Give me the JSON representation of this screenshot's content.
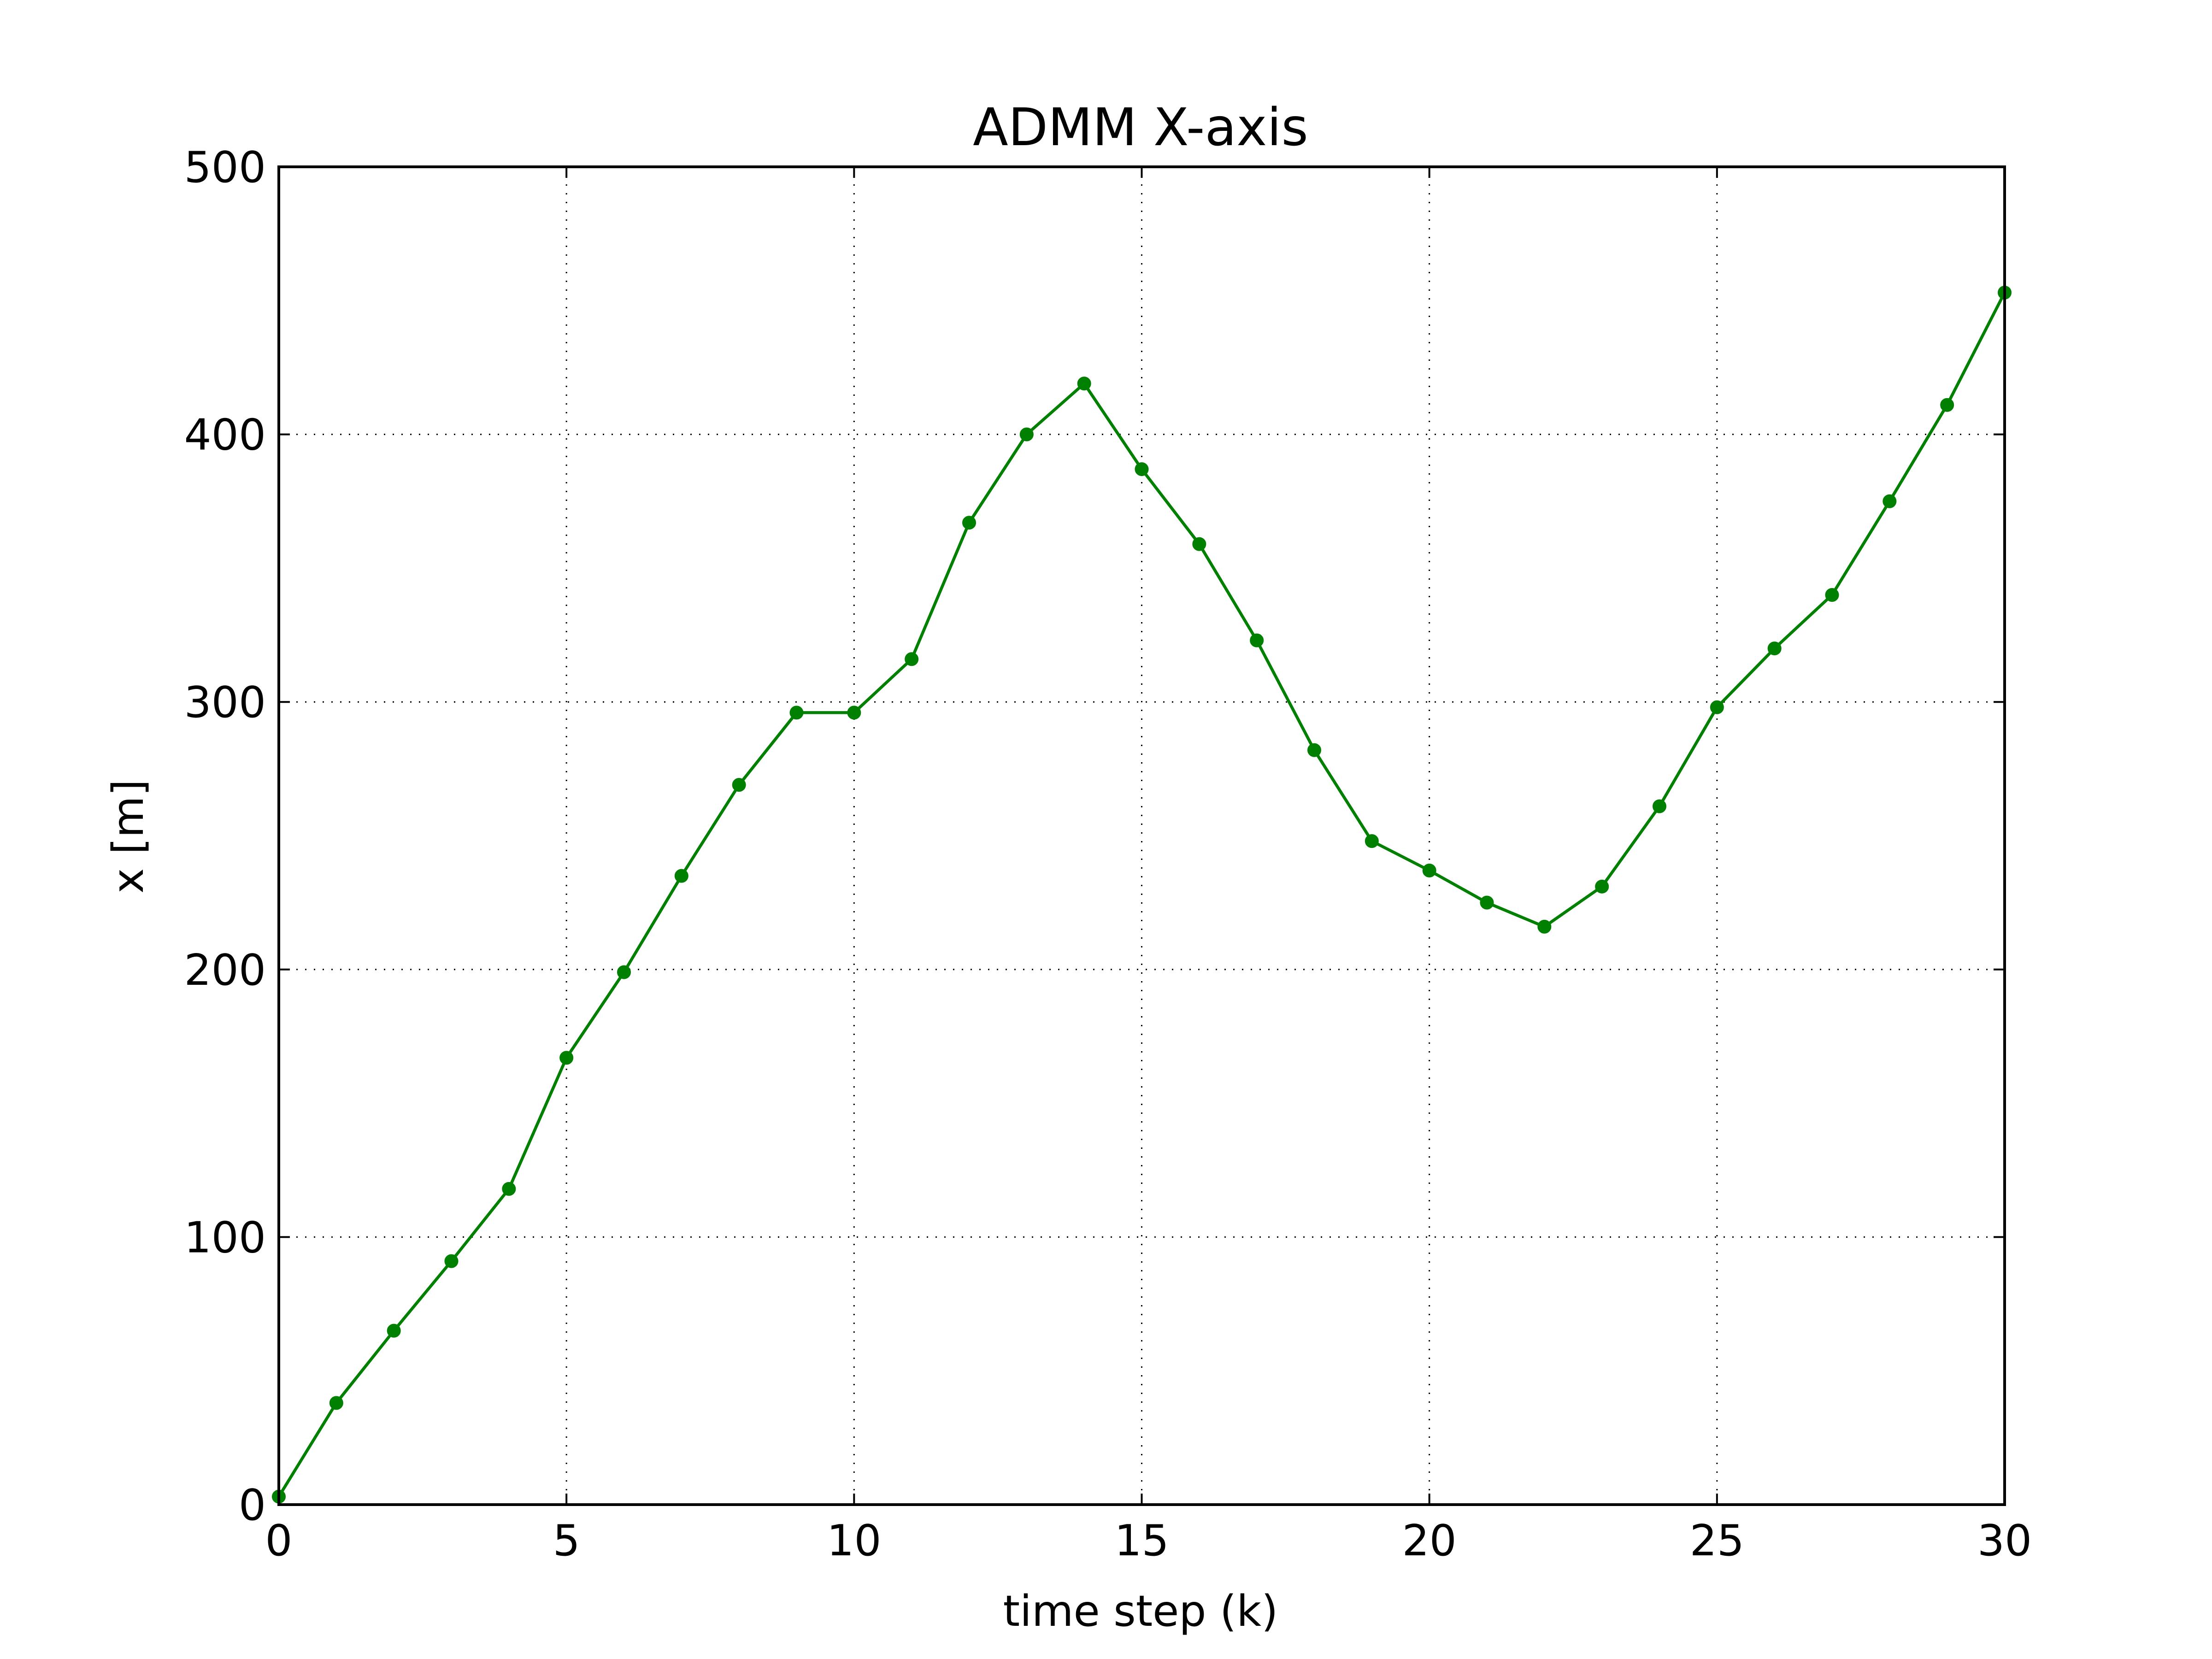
{
  "chart_data": {
    "type": "line",
    "title": "ADMM X-axis",
    "xlabel": "time step (k)",
    "ylabel": "x [m]",
    "xlim": [
      0,
      30
    ],
    "ylim": [
      0,
      500
    ],
    "xticks": [
      0,
      5,
      10,
      15,
      20,
      25,
      30
    ],
    "yticks": [
      0,
      100,
      200,
      300,
      400,
      500
    ],
    "xtick_labels": [
      "0",
      "5",
      "10",
      "15",
      "20",
      "25",
      "30"
    ],
    "ytick_labels": [
      "0",
      "100",
      "200",
      "300",
      "400",
      "500"
    ],
    "grid": true,
    "series": [
      {
        "color": "#008000",
        "marker": "circle",
        "x": [
          0,
          1,
          2,
          3,
          4,
          5,
          6,
          7,
          8,
          9,
          10,
          11,
          12,
          13,
          14,
          15,
          16,
          17,
          18,
          19,
          20,
          21,
          22,
          23,
          24,
          25,
          26,
          27,
          28,
          29,
          30
        ],
        "y": [
          3,
          38,
          65,
          91,
          118,
          167,
          199,
          235,
          269,
          296,
          296,
          316,
          367,
          400,
          419,
          387,
          359,
          323,
          282,
          248,
          237,
          225,
          216,
          231,
          261,
          298,
          320,
          340,
          375,
          411,
          453
        ]
      }
    ]
  }
}
